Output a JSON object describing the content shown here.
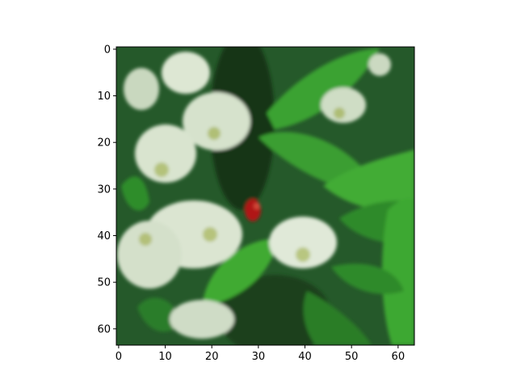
{
  "chart_data": {
    "type": "heatmap",
    "title": "",
    "xlabel": "",
    "ylabel": "",
    "xlim": [
      0,
      64
    ],
    "ylim": [
      64,
      0
    ],
    "grid": false,
    "x_ticks": [
      0,
      10,
      20,
      30,
      40,
      50,
      60
    ],
    "y_ticks": [
      0,
      10,
      20,
      30,
      40,
      50,
      60
    ],
    "image_width": 64,
    "image_height": 64,
    "x_tick_labels": [
      "0",
      "10",
      "20",
      "30",
      "40",
      "50",
      "60"
    ],
    "y_tick_labels": [
      "0",
      "10",
      "20",
      "30",
      "40",
      "50",
      "60"
    ],
    "colors": {
      "dark_green": "#1f4f1d",
      "mid_green": "#2f8f2a",
      "leaf_green": "#39a52f",
      "flower_white": "#dfe8d6",
      "flower_yellow": "#b7c27a",
      "berry_red": "#b01616",
      "shadow": "#0e220d"
    }
  }
}
